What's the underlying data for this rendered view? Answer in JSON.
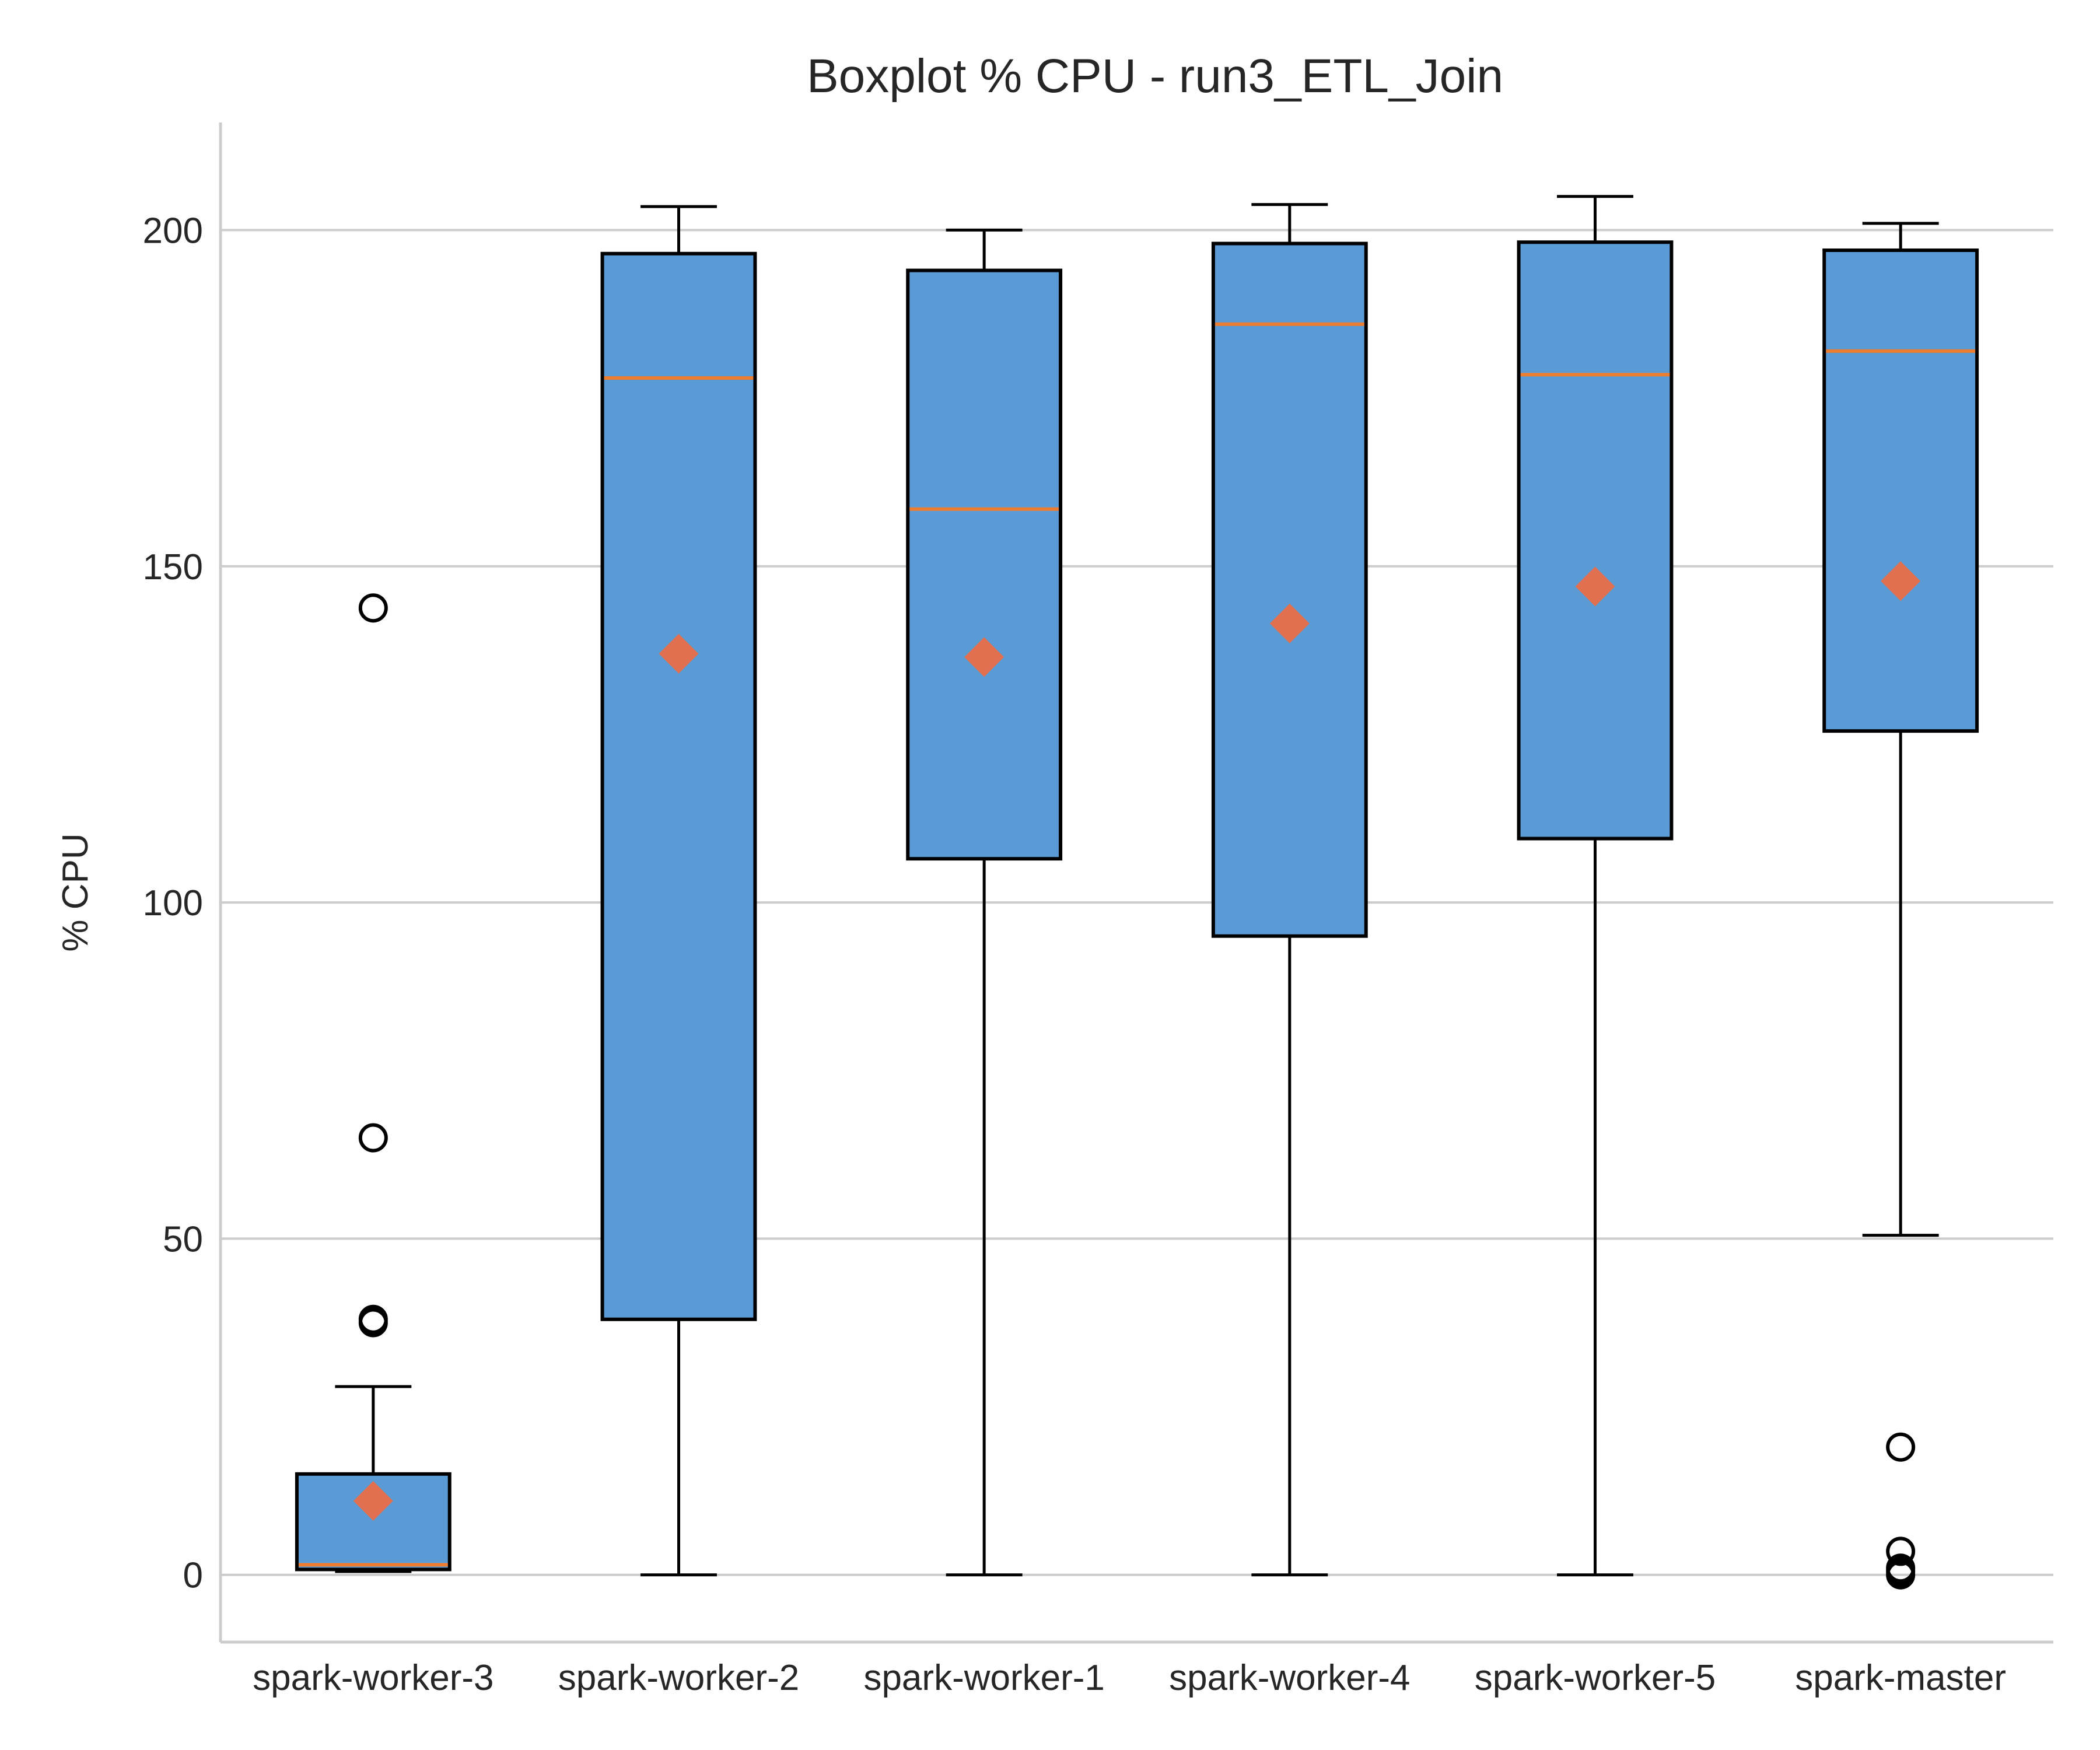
{
  "chart_data": {
    "type": "boxplot",
    "title": "Boxplot % CPU - run3_ETL_Join",
    "xlabel": "",
    "ylabel": "% CPU",
    "ylim": [
      -10,
      216
    ],
    "yticks": [
      0,
      50,
      100,
      150,
      200
    ],
    "grid": "horizontal",
    "colors": {
      "box_fill": "#5b9bd5",
      "median": "#ed7d31",
      "mean_marker": "#e07050",
      "outline": "#000000",
      "grid": "#cccccc"
    },
    "categories": [
      "spark-worker-3",
      "spark-worker-2",
      "spark-worker-1",
      "spark-worker-4",
      "spark-worker-5",
      "spark-master"
    ],
    "boxes": [
      {
        "label": "spark-worker-3",
        "whisker_low": 0.5,
        "q1": 0.8,
        "median": 1.5,
        "q3": 15,
        "whisker_high": 28,
        "mean": 11,
        "outliers": [
          37.5,
          38,
          65,
          143.8
        ]
      },
      {
        "label": "spark-worker-2",
        "whisker_low": 0,
        "q1": 38,
        "median": 178,
        "q3": 196.5,
        "whisker_high": 203.5,
        "mean": 137,
        "outliers": []
      },
      {
        "label": "spark-worker-1",
        "whisker_low": 0,
        "q1": 106.5,
        "median": 158.5,
        "q3": 194,
        "whisker_high": 200,
        "mean": 136.5,
        "outliers": []
      },
      {
        "label": "spark-worker-4",
        "whisker_low": 0,
        "q1": 95,
        "median": 186,
        "q3": 198,
        "whisker_high": 203.8,
        "mean": 141.5,
        "outliers": []
      },
      {
        "label": "spark-worker-5",
        "whisker_low": 0,
        "q1": 109.5,
        "median": 178.5,
        "q3": 198.2,
        "whisker_high": 205,
        "mean": 147,
        "outliers": []
      },
      {
        "label": "spark-master",
        "whisker_low": 50.5,
        "q1": 125.5,
        "median": 182,
        "q3": 197,
        "whisker_high": 201,
        "mean": 147.8,
        "outliers": [
          0,
          0.5,
          1,
          3.5,
          19
        ]
      }
    ]
  }
}
